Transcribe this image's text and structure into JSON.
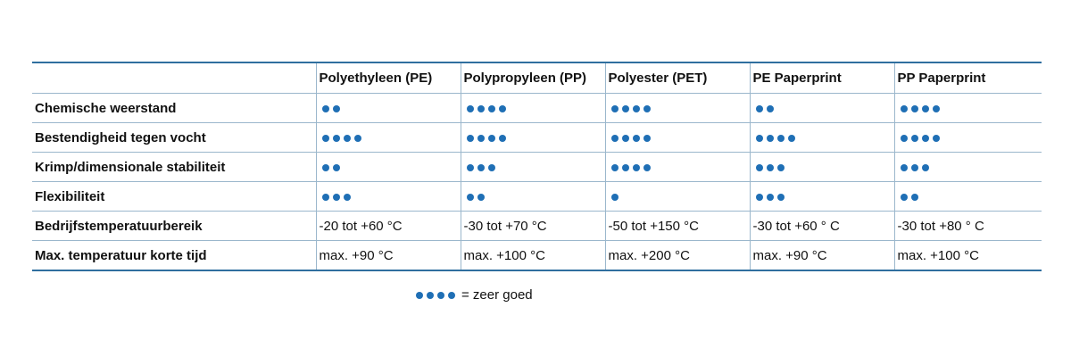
{
  "colors": {
    "dot": "#1f6fb5",
    "rule": "#2f6f9f"
  },
  "table": {
    "headers": [
      "",
      "Polyethyleen (PE)",
      "Polypropyleen (PP)",
      "Polyester (PET)",
      "PE Paperprint",
      "PP Paperprint"
    ],
    "rows": [
      {
        "label": "Chemische weerstand",
        "cells": [
          {
            "rating": 2
          },
          {
            "rating": 4
          },
          {
            "rating": 4
          },
          {
            "rating": 2
          },
          {
            "rating": 4
          }
        ]
      },
      {
        "label": "Bestendigheid tegen vocht",
        "cells": [
          {
            "rating": 4
          },
          {
            "rating": 4
          },
          {
            "rating": 4
          },
          {
            "rating": 4
          },
          {
            "rating": 4
          }
        ]
      },
      {
        "label": "Krimp/dimensionale stabiliteit",
        "cells": [
          {
            "rating": 2
          },
          {
            "rating": 3
          },
          {
            "rating": 4
          },
          {
            "rating": 3
          },
          {
            "rating": 3
          }
        ]
      },
      {
        "label": "Flexibiliteit",
        "cells": [
          {
            "rating": 3
          },
          {
            "rating": 2
          },
          {
            "rating": 1
          },
          {
            "rating": 3
          },
          {
            "rating": 2
          }
        ]
      },
      {
        "label": "Bedrijfstemperatuurbereik",
        "cells": [
          {
            "text": "-20 tot +60 °C"
          },
          {
            "text": "-30 tot +70 °C"
          },
          {
            "text": "-50 tot +150 °C"
          },
          {
            "text": "-30 tot +60 ° C"
          },
          {
            "text": "-30 tot +80 ° C"
          }
        ]
      },
      {
        "label": "Max. temperatuur korte tijd",
        "cells": [
          {
            "text": "max. +90 °C"
          },
          {
            "text": "max. +100 °C"
          },
          {
            "text": "max. +200 °C"
          },
          {
            "text": "max. +90 °C"
          },
          {
            "text": "max. +100 °C"
          }
        ]
      }
    ]
  },
  "legend": {
    "rating": 4,
    "text": "= zeer goed"
  }
}
